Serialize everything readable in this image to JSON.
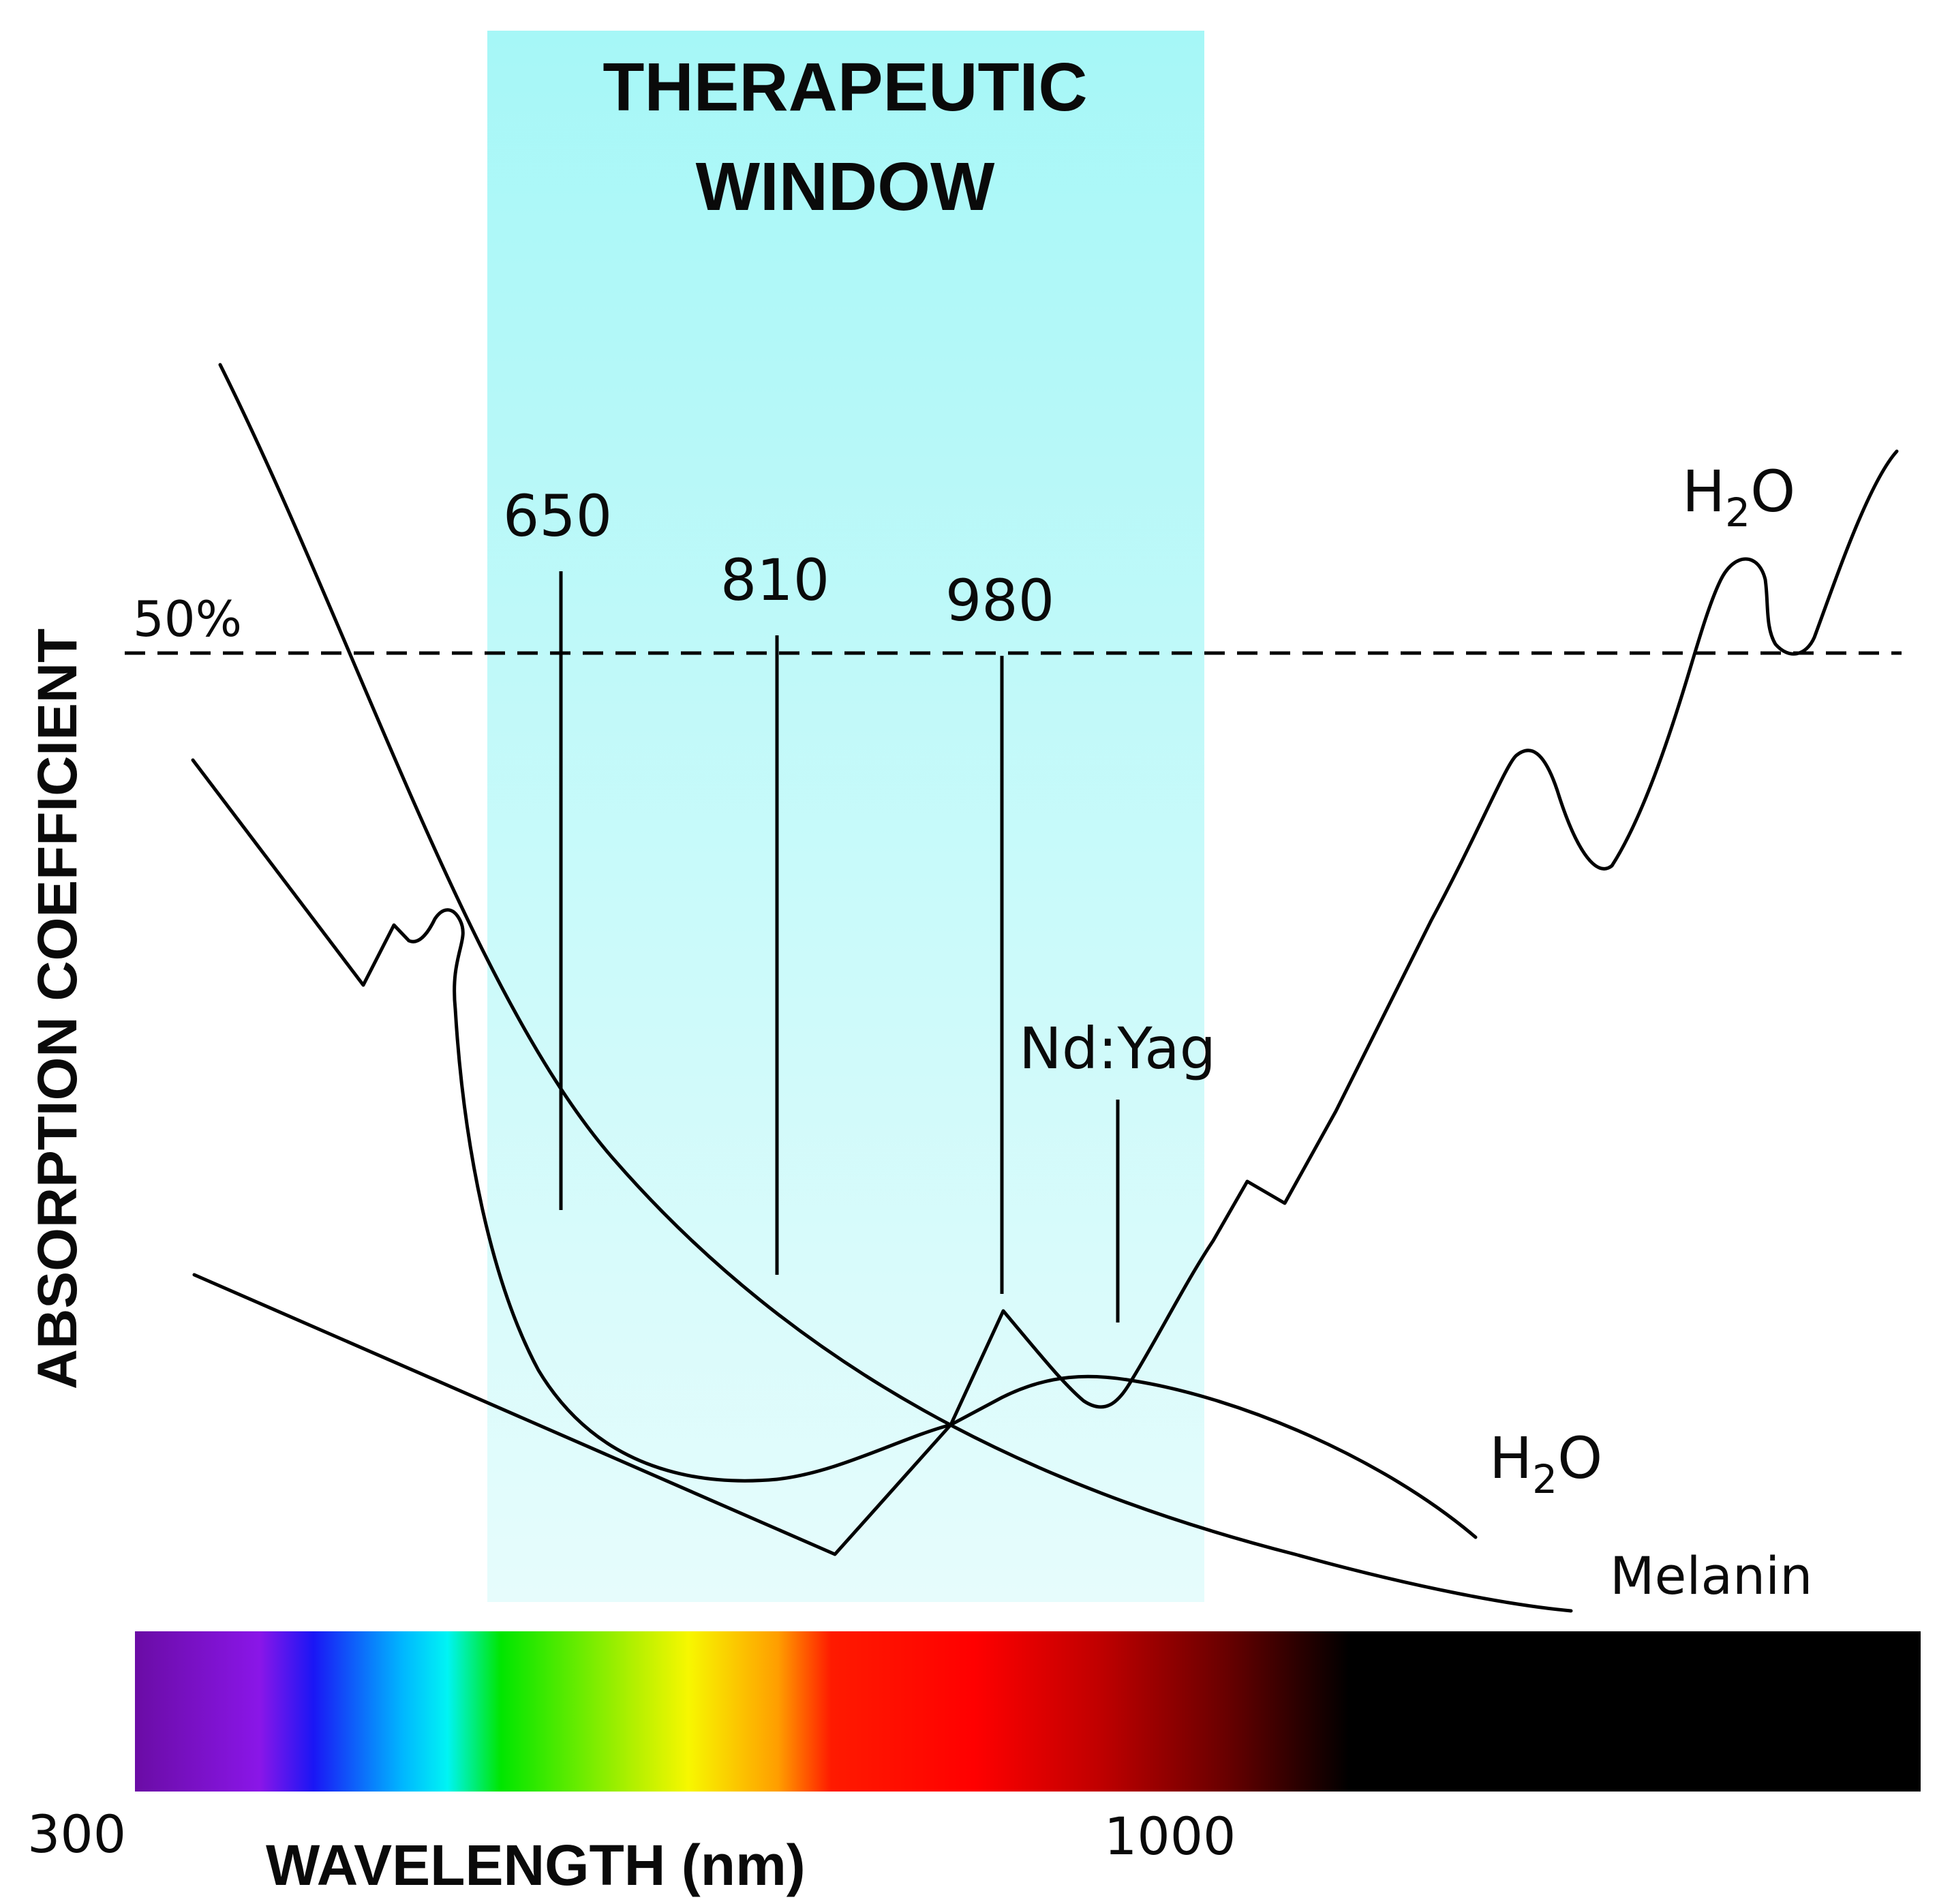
{
  "window_label": {
    "line1": "THERAPEUTIC",
    "line2": "WINDOW"
  },
  "threshold": {
    "label": "50%"
  },
  "y_axis_label": "ABSORPTION COEFFICIENT",
  "x_axis": {
    "label": "WAVELENGTH (nm)",
    "tick_start": "300",
    "tick_mid": "1000"
  },
  "wavelength_markers": [
    {
      "label": "650"
    },
    {
      "label": "810"
    },
    {
      "label": "980"
    },
    {
      "label": "Nd:Yag"
    }
  ],
  "curve_labels": {
    "water_upper": {
      "main": "H",
      "sub": "2",
      "tail": "O"
    },
    "water_lower": {
      "main": "H",
      "sub": "2",
      "tail": "O"
    },
    "melanin": "Melanin"
  },
  "colors": {
    "window_top": "#a6f7f7",
    "window_bottom": "#e6fcfc",
    "curves": "#000000",
    "spectrum": [
      "#6a0ca5",
      "#8a16e8",
      "#1a16f5",
      "#00b7ff",
      "#00f4f4",
      "#00e600",
      "#b4f000",
      "#f7f700",
      "#ff9e00",
      "#ff1a00",
      "#ff0000",
      "#c00000",
      "#6a0000",
      "#000000"
    ]
  }
}
